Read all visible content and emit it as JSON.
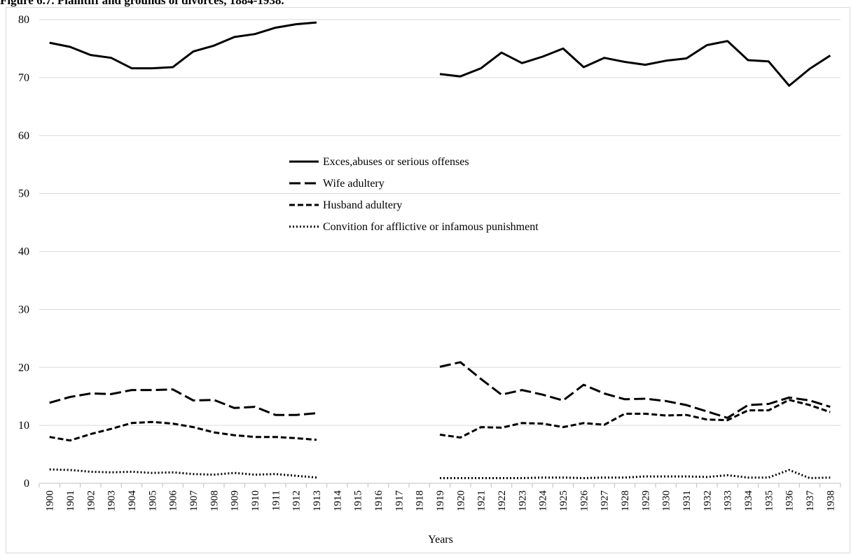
{
  "figure": {
    "title": "Figure 6.7. Plaintiff and grounds of divorces, 1884-1938."
  },
  "chart_data": {
    "type": "line",
    "xlabel": "Years",
    "ylabel": "",
    "ylim": [
      0,
      80
    ],
    "yticks": [
      0,
      10,
      20,
      30,
      40,
      50,
      60,
      70,
      80
    ],
    "grid": true,
    "legend_position": "center",
    "categories": [
      "1900",
      "1901",
      "1902",
      "1903",
      "1904",
      "1905",
      "1906",
      "1907",
      "1908",
      "1909",
      "1910",
      "1911",
      "1912",
      "1913",
      "1914",
      "1915",
      "1916",
      "1917",
      "1918",
      "1919",
      "1920",
      "1921",
      "1922",
      "1923",
      "1924",
      "1925",
      "1926",
      "1927",
      "1928",
      "1929",
      "1930",
      "1931",
      "1932",
      "1933",
      "1934",
      "1935",
      "1936",
      "1937",
      "1938"
    ],
    "series": [
      {
        "name": "Exces,abuses or serious offenses",
        "dash": "solid",
        "values": [
          76.0,
          75.3,
          73.9,
          73.4,
          71.6,
          71.6,
          71.8,
          74.5,
          75.5,
          77.0,
          77.5,
          78.6,
          79.2,
          79.5,
          null,
          null,
          null,
          null,
          null,
          70.6,
          70.2,
          71.6,
          74.3,
          72.5,
          73.6,
          75.0,
          71.8,
          73.4,
          72.7,
          72.2,
          72.9,
          73.3,
          75.6,
          76.3,
          73.0,
          72.8,
          68.6,
          71.5,
          73.8
        ]
      },
      {
        "name": "Wife adultery",
        "dash": "longdash",
        "values": [
          13.9,
          14.9,
          15.5,
          15.4,
          16.1,
          16.1,
          16.2,
          14.3,
          14.4,
          13.0,
          13.2,
          11.8,
          11.8,
          12.1,
          null,
          null,
          null,
          null,
          null,
          20.1,
          20.9,
          18.0,
          15.3,
          16.1,
          15.3,
          14.3,
          17.0,
          15.5,
          14.5,
          14.6,
          14.2,
          13.5,
          12.4,
          11.3,
          13.5,
          13.7,
          14.8,
          14.3,
          13.2
        ]
      },
      {
        "name": "Husband adultery",
        "dash": "dash",
        "values": [
          8.0,
          7.4,
          8.5,
          9.4,
          10.4,
          10.6,
          10.3,
          9.7,
          8.8,
          8.3,
          8.0,
          8.0,
          7.8,
          7.5,
          null,
          null,
          null,
          null,
          null,
          8.4,
          7.9,
          9.7,
          9.6,
          10.4,
          10.3,
          9.7,
          10.4,
          10.1,
          12.0,
          12.0,
          11.7,
          11.8,
          11.0,
          10.9,
          12.6,
          12.6,
          14.4,
          13.5,
          12.3
        ]
      },
      {
        "name": "Convition for afflictive or infamous punishment",
        "dash": "dot",
        "values": [
          2.4,
          2.3,
          2.0,
          1.9,
          2.0,
          1.8,
          1.9,
          1.6,
          1.5,
          1.8,
          1.5,
          1.6,
          1.3,
          1.0,
          null,
          null,
          null,
          null,
          null,
          0.9,
          0.9,
          0.9,
          0.9,
          0.9,
          1.0,
          1.0,
          0.9,
          1.0,
          1.0,
          1.2,
          1.2,
          1.2,
          1.1,
          1.4,
          1.0,
          1.0,
          2.3,
          0.9,
          1.0
        ]
      }
    ]
  }
}
